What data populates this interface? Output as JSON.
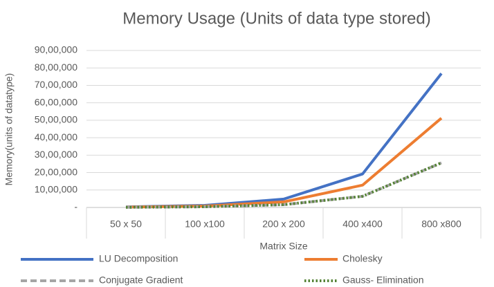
{
  "chart_data": {
    "type": "line",
    "title": "Memory Usage (Units of data type stored)",
    "x_label": "Matrix Size",
    "y_label": "Memory(units of datatype)",
    "categories": [
      "50 x 50",
      "100 x100",
      "200 x 200",
      "400 x400",
      "800 x800"
    ],
    "series": [
      {
        "name": "LU Decomposition",
        "color": "#4472c4",
        "style": "solid",
        "values": [
          30000,
          120000,
          480000,
          1920000,
          7680000
        ]
      },
      {
        "name": "Cholesky",
        "color": "#ed7d31",
        "style": "solid",
        "values": [
          20000,
          80000,
          320000,
          1280000,
          5120000
        ]
      },
      {
        "name": "Conjugate Gradient",
        "color": "#a5a5a5",
        "style": "dashed",
        "values": [
          10000,
          40000,
          160000,
          640000,
          2560000
        ]
      },
      {
        "name": "Gauss- Elimination",
        "color": "#548235",
        "style": "dotted",
        "values": [
          10000,
          40000,
          160000,
          640000,
          2560000
        ]
      }
    ],
    "ylim": [
      0,
      9000000
    ],
    "yticks": [
      {
        "value": 0,
        "label": "-"
      },
      {
        "value": 1000000,
        "label": "10,00,000"
      },
      {
        "value": 2000000,
        "label": "20,00,000"
      },
      {
        "value": 3000000,
        "label": "30,00,000"
      },
      {
        "value": 4000000,
        "label": "40,00,000"
      },
      {
        "value": 5000000,
        "label": "50,00,000"
      },
      {
        "value": 6000000,
        "label": "60,00,000"
      },
      {
        "value": 7000000,
        "label": "70,00,000"
      },
      {
        "value": 8000000,
        "label": "80,00,000"
      },
      {
        "value": 9000000,
        "label": "90,00,000"
      }
    ],
    "grid": true,
    "legend": "bottom"
  }
}
